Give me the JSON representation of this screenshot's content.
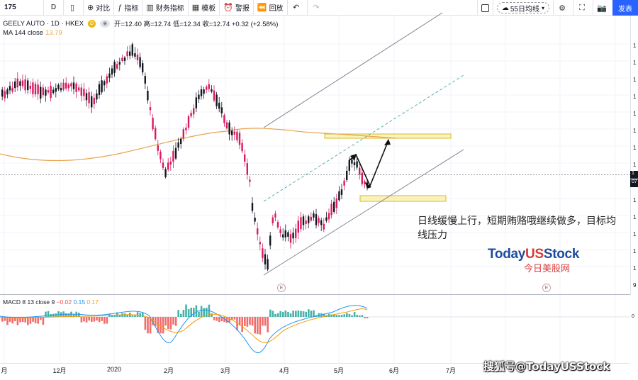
{
  "toolbar": {
    "symbol": "175",
    "interval": "D",
    "compare": "对比",
    "indicators": "指标",
    "financials": "财务指标",
    "templates": "模板",
    "alert": "警报",
    "replay": "回放",
    "watchlist": "55日均线",
    "publish": "发表"
  },
  "legend": {
    "name": "GEELY AUTO · 1D · HKEX",
    "badge": "D",
    "ohlc": "开=12.40 高=12.74 低=12.34 收=12.74 +0.32 (+2.58%)"
  },
  "ma": {
    "label": "MA 144 close",
    "value": "13.79"
  },
  "macd": {
    "label": "MACD 8 13 close 9",
    "hist": "−0.02",
    "macd": "0.15",
    "signal": "0.17"
  },
  "price_axis": {
    "tick": "1",
    "tick_low": "9"
  },
  "price_labels": {
    "last": "1",
    "countdown": "07"
  },
  "macd_axis": {
    "zero": "0"
  },
  "events": [
    "E",
    "E"
  ],
  "months": [
    "月",
    "12月",
    "2020",
    "2月",
    "3月",
    "4月",
    "5月",
    "6月",
    "7月"
  ],
  "note": "日线缓慢上行，短期贿赂哦继续做多，目标均线压力",
  "watermark": {
    "brand_a": "Today",
    "brand_b": "US",
    "brand_c": "Stock",
    "cn": "今日美股网"
  },
  "source": "搜狐号@TodayUSStock",
  "colors": {
    "up": "#131722",
    "down": "#d81b60",
    "ma": "#e8a450",
    "zone": "#f5e66b",
    "channel": "#787b86",
    "mid": "#4fa8a0",
    "macd_line": "#2196f3",
    "signal_line": "#ff9800",
    "hist_up": "#26a69a",
    "hist_down": "#ef5350"
  }
}
